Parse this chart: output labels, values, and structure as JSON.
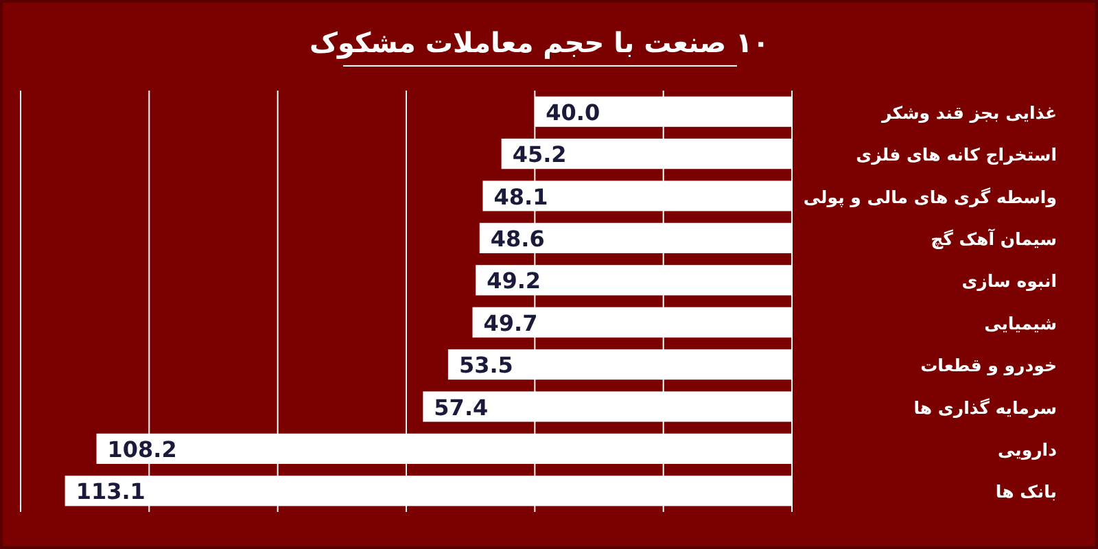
{
  "chart_data": {
    "type": "bar",
    "orientation": "horizontal",
    "title": "۱۰ صنعت با حجم معاملات مشکوک",
    "categories": [
      "غذایی بجز قند وشکر",
      "استخراج کانه های فلزی",
      "واسطه گری های مالی و پولی",
      "سیمان آهک گچ",
      "انبوه سازی",
      "شیمیایی",
      "خودرو و قطعات",
      "سرمایه گذاری ها",
      "دارویی",
      "بانک ها"
    ],
    "values": [
      40.0,
      45.2,
      48.1,
      48.6,
      49.2,
      49.7,
      53.5,
      57.4,
      108.2,
      113.1
    ],
    "value_labels": [
      "40.0",
      "45.2",
      "48.1",
      "48.6",
      "49.2",
      "49.7",
      "53.5",
      "57.4",
      "108.2",
      "113.1"
    ],
    "color": "#ffffff",
    "grid": "x",
    "tick_labels": "y",
    "xlim": [
      120,
      0
    ],
    "xticks": [
      {
        "value": 0,
        "label": null
      },
      {
        "value": 20,
        "label": null
      },
      {
        "value": 40,
        "label": null
      },
      {
        "value": 60,
        "label": null
      },
      {
        "value": 80,
        "label": null
      },
      {
        "value": 100,
        "label": null
      },
      {
        "value": 120,
        "label": null
      }
    ]
  }
}
